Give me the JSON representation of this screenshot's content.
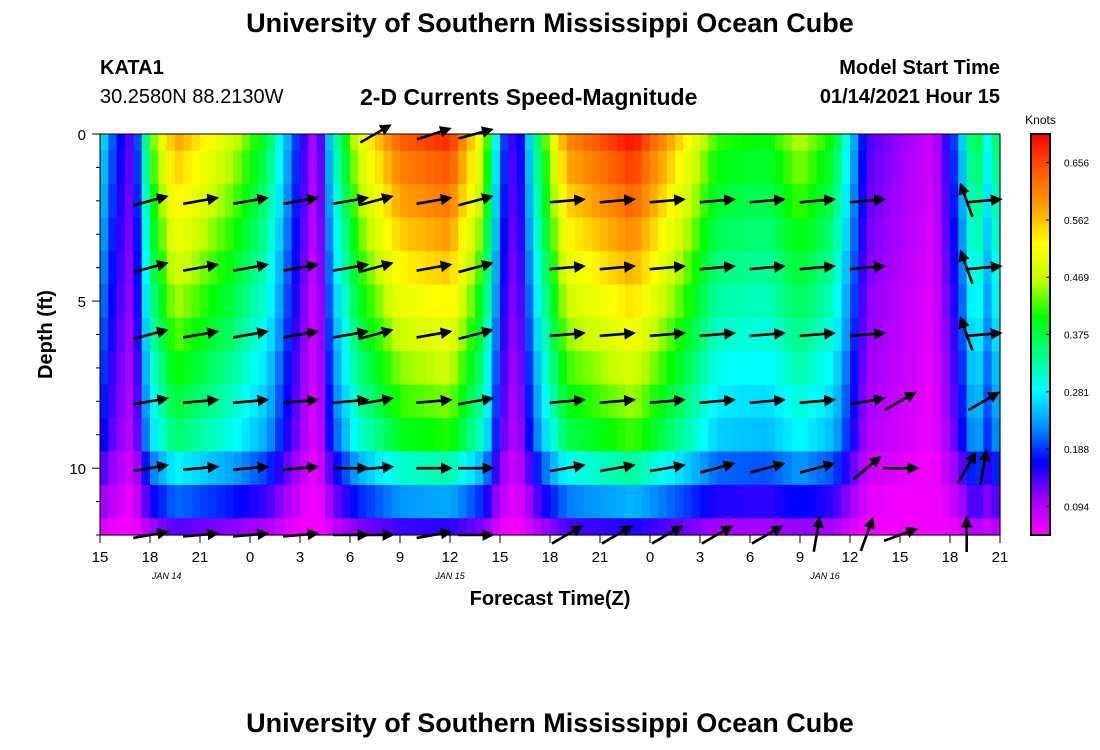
{
  "header": {
    "title": "University of Southern Mississippi Ocean Cube",
    "station_id": "KATA1",
    "station_coords": "30.2580N 88.2130W",
    "subtitle": "2-D Currents Speed-Magnitude",
    "model_start_label": "Model Start Time",
    "model_start_value": "01/14/2021 Hour 15"
  },
  "footer": {
    "title": "University of Southern Mississippi Ocean Cube"
  },
  "chart_data": {
    "type": "heatmap",
    "title": "2-D Currents Speed-Magnitude",
    "xlabel": "Forecast Time(Z)",
    "ylabel": "Depth (ft)",
    "x_hours": [
      0,
      54
    ],
    "ylim": [
      0,
      12
    ],
    "x_ticks": [
      "15",
      "18",
      "21",
      "0",
      "3",
      "6",
      "9",
      "12",
      "15",
      "18",
      "21",
      "0",
      "3",
      "6",
      "9",
      "12",
      "15",
      "18",
      "21"
    ],
    "y_ticks": [
      "0",
      "5",
      "10"
    ],
    "date_labels": [
      {
        "hour": 4,
        "text": "JAN 14"
      },
      {
        "hour": 21,
        "text": "JAN 15"
      },
      {
        "hour": 43.5,
        "text": "JAN 16"
      }
    ],
    "colorbar": {
      "label": "Knots",
      "ticks": [
        "0.656",
        "0.562",
        "0.469",
        "0.375",
        "0.281",
        "0.188",
        "0.094"
      ],
      "stops": [
        "#ff00ff",
        "#9a00ff",
        "#0000ff",
        "#0096ff",
        "#00ffff",
        "#00ff80",
        "#00ff00",
        "#c8ff00",
        "#ffff00",
        "#ffa000",
        "#ff5a00",
        "#ff0000"
      ]
    },
    "depth_rows": [
      0,
      1,
      2,
      3,
      4,
      5,
      6,
      7,
      8,
      9,
      10,
      11,
      12
    ],
    "speed_profile": [
      {
        "hour": 0,
        "v": 0.28
      },
      {
        "hour": 0.6,
        "v": 0.2
      },
      {
        "hour": 1.2,
        "v": 0.15
      },
      {
        "hour": 2,
        "v": 0.1
      },
      {
        "hour": 3,
        "v": 0.42
      },
      {
        "hour": 4.5,
        "v": 0.6
      },
      {
        "hour": 6,
        "v": 0.55
      },
      {
        "hour": 8,
        "v": 0.48
      },
      {
        "hour": 10,
        "v": 0.38
      },
      {
        "hour": 11.5,
        "v": 0.2
      },
      {
        "hour": 13,
        "v": 0.05
      },
      {
        "hour": 14,
        "v": 0.3
      },
      {
        "hour": 15.5,
        "v": 0.5
      },
      {
        "hour": 18,
        "v": 0.66
      },
      {
        "hour": 21,
        "v": 0.7
      },
      {
        "hour": 23,
        "v": 0.5
      },
      {
        "hour": 24,
        "v": 0.2
      },
      {
        "hour": 25,
        "v": 0.1
      },
      {
        "hour": 26.5,
        "v": 0.4
      },
      {
        "hour": 28,
        "v": 0.62
      },
      {
        "hour": 32,
        "v": 0.72
      },
      {
        "hour": 35,
        "v": 0.55
      },
      {
        "hour": 37,
        "v": 0.42
      },
      {
        "hour": 40,
        "v": 0.4
      },
      {
        "hour": 42,
        "v": 0.47
      },
      {
        "hour": 44,
        "v": 0.4
      },
      {
        "hour": 46,
        "v": 0.12
      },
      {
        "hour": 50,
        "v": 0.05
      },
      {
        "hour": 51.5,
        "v": 0.2
      },
      {
        "hour": 52.5,
        "v": 0.4
      },
      {
        "hour": 53.5,
        "v": 0.25
      },
      {
        "hour": 54,
        "v": 0.45
      }
    ],
    "arrow_hours": [
      3,
      6,
      9,
      12,
      15,
      16.5,
      20,
      22.5,
      28,
      31,
      34,
      37,
      40,
      43,
      46,
      48,
      52,
      53
    ],
    "arrow_depths": [
      0,
      2,
      4,
      6,
      8,
      10,
      12
    ],
    "arrow_direction_deg": [
      [
        null,
        null,
        null,
        null,
        null,
        -30,
        -18,
        -15,
        null,
        null,
        null,
        null,
        null,
        null,
        null,
        null,
        null,
        null
      ],
      [
        -15,
        -10,
        -10,
        -10,
        -10,
        -15,
        -10,
        -15,
        -5,
        -5,
        -5,
        -5,
        -5,
        -5,
        -5,
        null,
        -110,
        -5
      ],
      [
        -15,
        -10,
        -10,
        -10,
        -10,
        -15,
        -10,
        -15,
        -5,
        -5,
        -5,
        -5,
        -5,
        -5,
        -5,
        null,
        -110,
        -5
      ],
      [
        -15,
        -10,
        -10,
        -10,
        -10,
        -15,
        -10,
        -15,
        -5,
        -5,
        -5,
        -5,
        -5,
        -5,
        -5,
        null,
        -110,
        -5
      ],
      [
        -10,
        -5,
        -5,
        -5,
        -5,
        -10,
        -5,
        -10,
        -5,
        -5,
        -5,
        -5,
        -5,
        -5,
        -10,
        -30,
        null,
        -30
      ],
      [
        -10,
        -5,
        -5,
        -5,
        0,
        -5,
        0,
        0,
        -10,
        -10,
        -10,
        -15,
        -15,
        -15,
        -40,
        0,
        -60,
        -80
      ],
      [
        -10,
        -5,
        -5,
        -5,
        0,
        0,
        -10,
        0,
        -30,
        -30,
        -30,
        -30,
        -30,
        -80,
        -70,
        -20,
        -90,
        null
      ]
    ]
  }
}
